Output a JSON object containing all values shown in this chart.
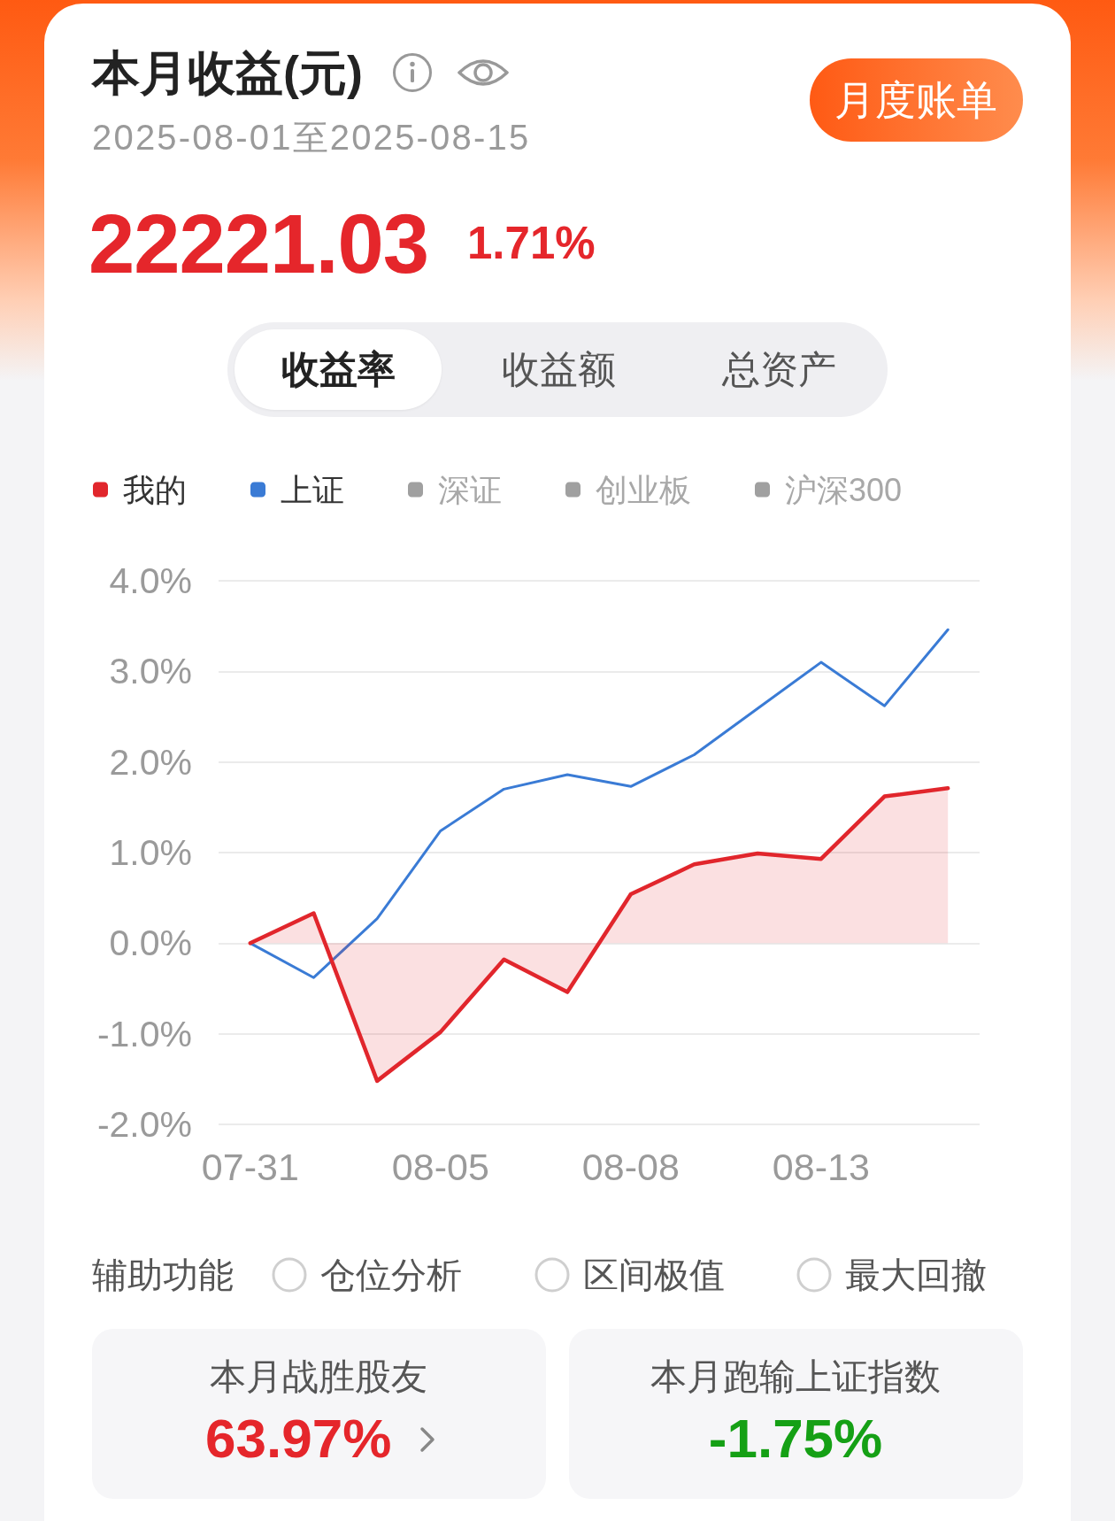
{
  "chart_data": {
    "type": "line",
    "title": "本月收益(元)",
    "subtitle": "2025-08-01至2025-08-15",
    "annotations": [
      "22221.03",
      "1.71%",
      "月度账单",
      "收益率",
      "收益额",
      "总资产",
      "辅助功能",
      "仓位分析",
      "区间极值",
      "最大回撤",
      "本月战胜股友",
      "63.97%",
      "本月跑输上证指数",
      "-1.75%"
    ],
    "categories": [
      "07-31",
      null,
      null,
      "08-05",
      null,
      null,
      "08-08",
      null,
      null,
      "08-13",
      null,
      null
    ],
    "series": [
      {
        "name": "我的",
        "type": "area",
        "color": "#e1262c",
        "values": [
          0,
          0.33,
          -1.52,
          -0.98,
          -0.18,
          -0.54,
          0.54,
          0.87,
          0.99,
          0.93,
          1.62,
          1.71
        ]
      },
      {
        "name": "上证",
        "color": "#3a7bd5",
        "values": [
          0,
          -0.38,
          0.27,
          1.24,
          1.7,
          1.86,
          1.73,
          2.08,
          2.59,
          3.1,
          2.62,
          3.46
        ]
      },
      {
        "name": "深证",
        "color": "#a0a0a0",
        "values": [
          null,
          null,
          null,
          null,
          null,
          null,
          null,
          null,
          null,
          null,
          null,
          null
        ]
      },
      {
        "name": "创业板",
        "color": "#a0a0a0",
        "values": [
          null,
          null,
          null,
          null,
          null,
          null,
          null,
          null,
          null,
          null,
          null,
          null
        ]
      },
      {
        "name": "沪深300",
        "color": "#a0a0a0",
        "values": [
          null,
          null,
          null,
          null,
          null,
          null,
          null,
          null,
          null,
          null,
          null,
          null
        ]
      }
    ],
    "ylim": [
      -2,
      4
    ],
    "yticks": [
      {
        "value": -2,
        "label": "-2.0%"
      },
      {
        "value": -1,
        "label": "-1.0%"
      },
      {
        "value": 0,
        "label": "0.0%"
      },
      {
        "value": 1,
        "label": "1.0%"
      },
      {
        "value": 2,
        "label": "2.0%"
      },
      {
        "value": 3,
        "label": "3.0%"
      },
      {
        "value": 4,
        "label": "4.0%"
      }
    ],
    "grid": "y",
    "legend": "top left",
    "marker": "none",
    "line_style": "solid"
  }
}
